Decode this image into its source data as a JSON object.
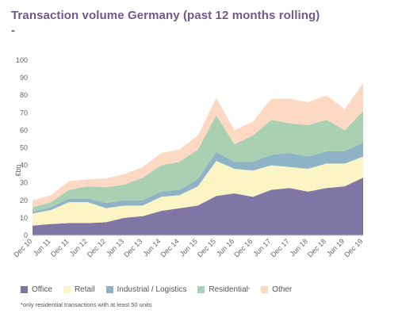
{
  "chart_data": {
    "type": "area",
    "title": "Transaction volume Germany (past 12 months rolling)",
    "subtitle": "-",
    "xlabel": "",
    "ylabel": "€bn",
    "ylim": [
      0,
      100
    ],
    "yticks": [
      0,
      10,
      20,
      30,
      40,
      50,
      60,
      70,
      80,
      90,
      100
    ],
    "grid": false,
    "stacked": true,
    "legend_position": "bottom",
    "x": [
      "Dec 10",
      "Jun 11",
      "Dec 11",
      "Jun 12",
      "Dec 12",
      "Jun 13",
      "Dec 13",
      "Jun 14",
      "Dec 14",
      "Jun 15",
      "Dec 15",
      "Jun 16",
      "Dec 16",
      "Jun 17",
      "Dec 17",
      "Jun 18",
      "Dec 18",
      "Jun 19",
      "Dec 19"
    ],
    "series": [
      {
        "name": "Office",
        "color": "#7f76a6",
        "values": [
          5.5,
          6.5,
          7,
          7,
          7.5,
          10,
          11,
          14,
          15.5,
          17,
          22.5,
          24,
          22,
          26,
          27,
          25,
          27,
          28,
          33
        ]
      },
      {
        "name": "Retail",
        "color": "#fbf4c4",
        "values": [
          7,
          8,
          12,
          12,
          8,
          7,
          6,
          8,
          7.5,
          11,
          20,
          14,
          15,
          14,
          12,
          13,
          14,
          13,
          12
        ]
      },
      {
        "name": "Industrial / Logistics",
        "color": "#8fb3c6",
        "values": [
          1,
          1.5,
          2,
          2,
          3,
          3,
          3,
          3,
          3,
          4,
          5,
          4,
          5,
          6,
          8,
          7,
          7,
          7,
          8
        ]
      },
      {
        "name": "Residential",
        "color": "#a9d0b2",
        "values": [
          2.5,
          3,
          5,
          7,
          9,
          9,
          13,
          15,
          16,
          17,
          21,
          10,
          15,
          20,
          17,
          18,
          18,
          12,
          18
        ]
      },
      {
        "name": "Other",
        "color": "#fdd9c4",
        "values": [
          4,
          4,
          5,
          4,
          5,
          6,
          6,
          7,
          7,
          8,
          10,
          8,
          8,
          12,
          14,
          13,
          14,
          12,
          16
        ]
      }
    ],
    "legend_sup": "*",
    "footnote": "*only residential transactions with at least 50 units"
  }
}
